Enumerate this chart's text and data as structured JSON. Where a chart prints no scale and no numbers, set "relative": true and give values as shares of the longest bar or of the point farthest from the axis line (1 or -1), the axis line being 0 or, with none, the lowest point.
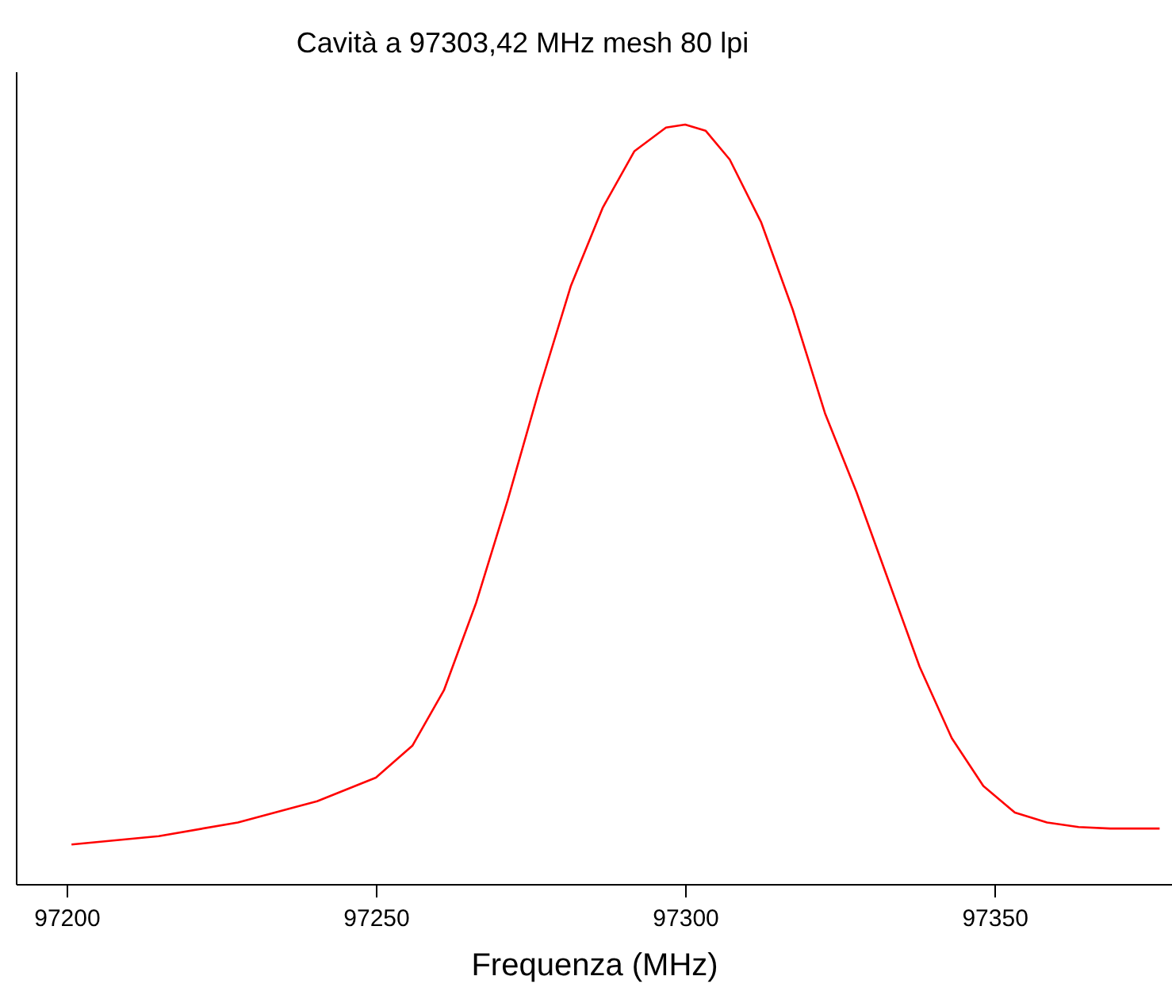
{
  "chart_data": {
    "type": "line",
    "title": "Cavità a 97303,42 MHz    mesh 80 lpi",
    "xlabel": "Frequenza (MHz)",
    "relative": true,
    "xlim": [
      97191.8,
      97378.7
    ],
    "xticks": [
      97200,
      97250,
      97300,
      97350
    ],
    "grid": false,
    "legend": false,
    "marker": "none",
    "line_style": "solid",
    "x": [
      97200.8,
      97214.9,
      97227.7,
      97240.5,
      97250,
      97255.9,
      97261,
      97266.2,
      97271.3,
      97276.4,
      97281.5,
      97286.7,
      97291.8,
      97296.9,
      97300,
      97303.3,
      97307.2,
      97312.3,
      97317.4,
      97322.6,
      97327.7,
      97332.8,
      97337.9,
      97343.1,
      97348.2,
      97353.3,
      97358.5,
      97363.6,
      97368.7,
      97376.7
    ],
    "series": [
      {
        "color": "#ff0000",
        "values": [
          0.052,
          0.063,
          0.081,
          0.109,
          0.14,
          0.182,
          0.255,
          0.37,
          0.505,
          0.651,
          0.787,
          0.891,
          0.965,
          0.996,
          1,
          0.992,
          0.954,
          0.871,
          0.756,
          0.62,
          0.516,
          0.401,
          0.286,
          0.192,
          0.129,
          0.094,
          0.081,
          0.075,
          0.073,
          0.073
        ]
      }
    ]
  }
}
